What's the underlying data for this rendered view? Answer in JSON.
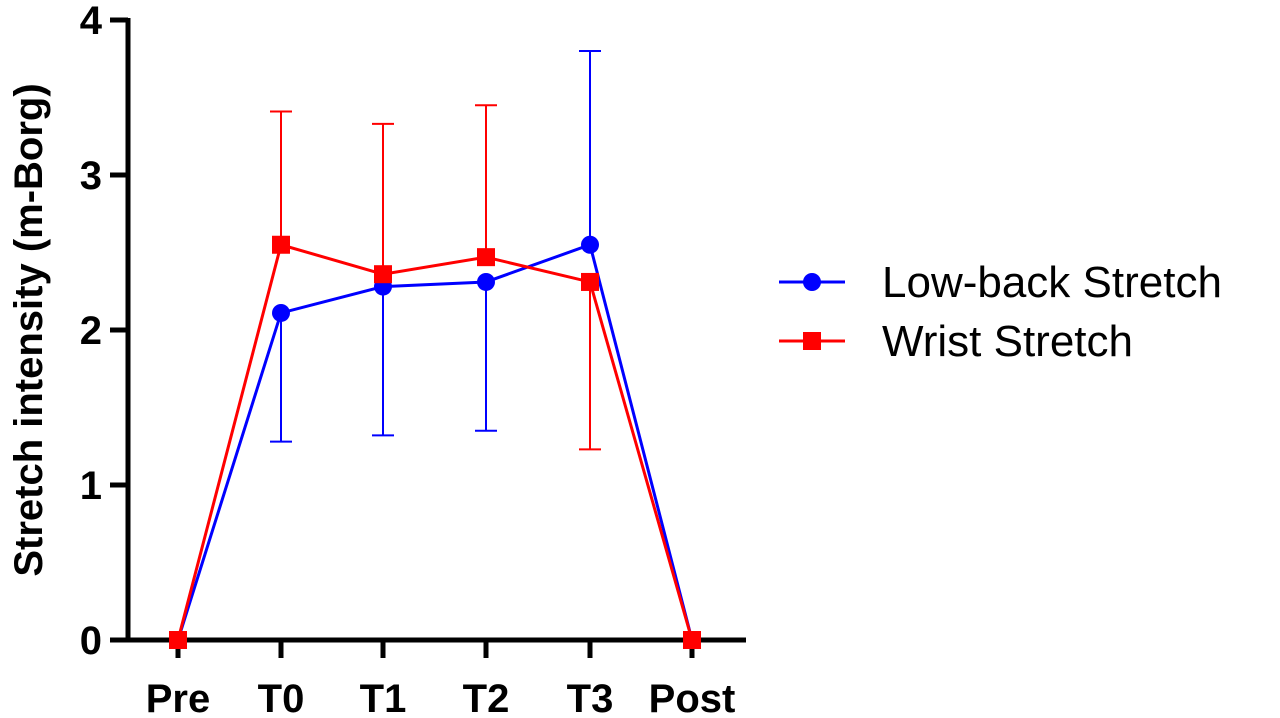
{
  "chart_data": {
    "type": "line",
    "title": "",
    "xlabel": "",
    "ylabel": "Stretch intensity  (m-Borg)",
    "categories": [
      "Pre",
      "T0",
      "T1",
      "T2",
      "T3",
      "Post"
    ],
    "ylim": [
      0,
      4
    ],
    "yticks": [
      0,
      1,
      2,
      3,
      4
    ],
    "ytick_labels": [
      "0",
      "1",
      "2",
      "3",
      "4"
    ],
    "grid": false,
    "legend_position": "right",
    "series": [
      {
        "name": "Low-back Stretch",
        "color": "#0000ff",
        "marker": "circle",
        "values": [
          0,
          2.11,
          2.28,
          2.31,
          2.55,
          0
        ],
        "error_lower": [
          null,
          1.28,
          1.32,
          1.35,
          null,
          null
        ],
        "error_upper": [
          null,
          null,
          null,
          null,
          3.8,
          null
        ]
      },
      {
        "name": "Wrist Stretch",
        "color": "#ff0000",
        "marker": "square",
        "values": [
          0,
          2.55,
          2.36,
          2.47,
          2.31,
          0
        ],
        "error_lower": [
          null,
          null,
          null,
          null,
          1.23,
          null
        ],
        "error_upper": [
          null,
          3.41,
          3.33,
          3.45,
          null,
          null
        ]
      }
    ]
  }
}
